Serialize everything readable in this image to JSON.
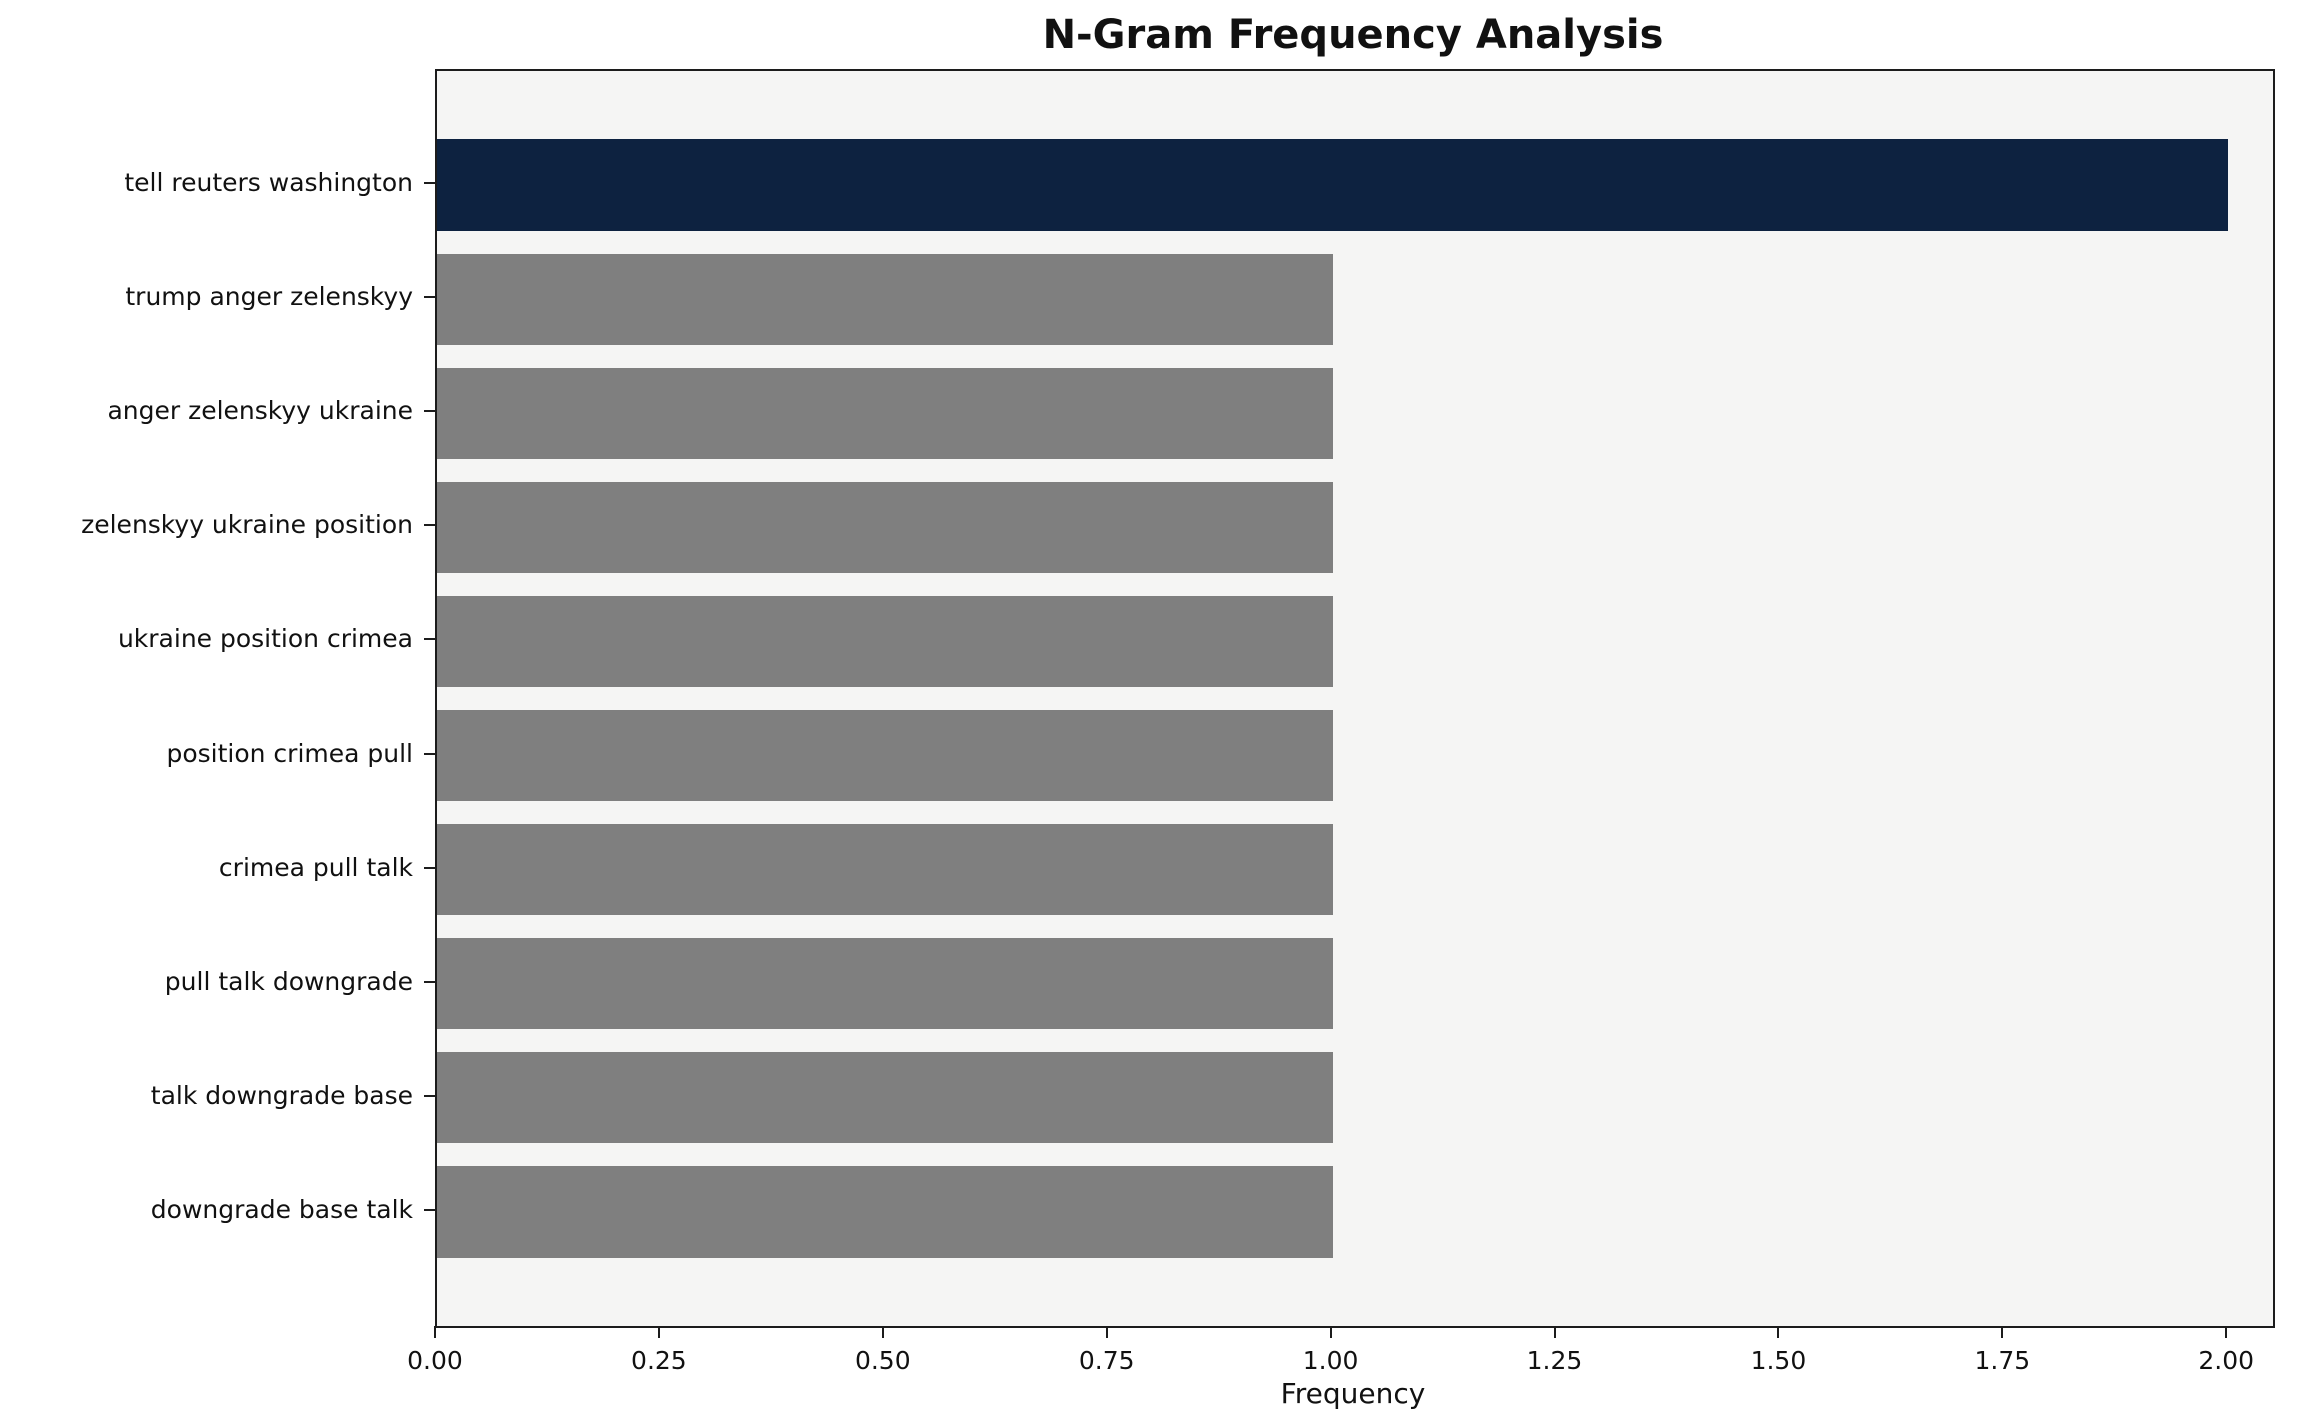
{
  "title": "N-Gram Frequency Analysis",
  "chart_data": {
    "type": "bar",
    "orientation": "horizontal",
    "title": "N-Gram Frequency Analysis",
    "xlabel": "Frequency",
    "ylabel": "",
    "categories": [
      "tell reuters washington",
      "trump anger zelenskyy",
      "anger zelenskyy ukraine",
      "zelenskyy ukraine position",
      "ukraine position crimea",
      "position crimea pull",
      "crimea pull talk",
      "pull talk downgrade",
      "talk downgrade base",
      "downgrade base talk"
    ],
    "values": [
      2,
      1,
      1,
      1,
      1,
      1,
      1,
      1,
      1,
      1
    ],
    "bar_colors": [
      "#0d2240",
      "#7f7f7f",
      "#7f7f7f",
      "#7f7f7f",
      "#7f7f7f",
      "#7f7f7f",
      "#7f7f7f",
      "#7f7f7f",
      "#7f7f7f",
      "#7f7f7f"
    ],
    "highlight_color": "#0d2240",
    "default_color": "#7f7f7f",
    "plot_background": "#f5f5f4",
    "xlim": [
      0,
      2.05
    ],
    "xticks": [
      0,
      0.25,
      0.5,
      0.75,
      1.0,
      1.25,
      1.5,
      1.75,
      2.0
    ],
    "xtick_labels": [
      "0.00",
      "0.25",
      "0.50",
      "0.75",
      "1.00",
      "1.25",
      "1.50",
      "1.75",
      "2.00"
    ],
    "grid": false,
    "legend": "none"
  }
}
